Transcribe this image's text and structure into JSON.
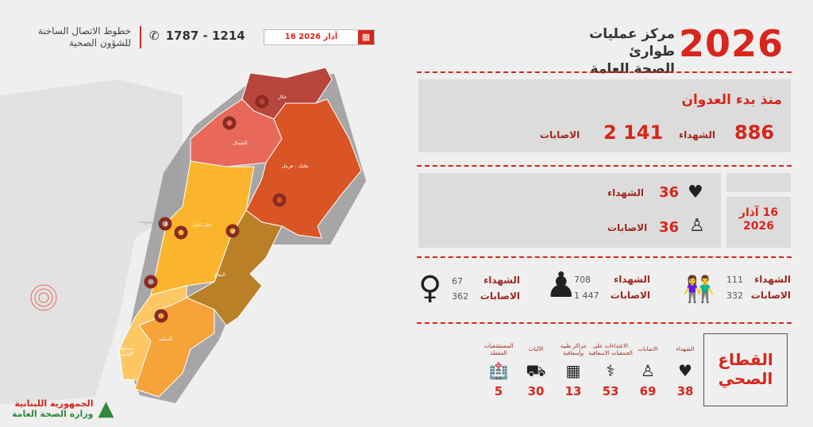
{
  "header": {
    "year": "2026",
    "title_line1": "مركز عمليات طوارئ",
    "title_line2": "الصحة العامة",
    "date": "16 آذار 2026",
    "hotline_numbers": "1787 - 1214",
    "hotline_label_line1": "خطوط الاتصال الساخنة",
    "hotline_label_line2": "للشؤون الصحية"
  },
  "since_aggression": {
    "title": "منذ بدء العدوان",
    "martyrs_label": "الشهداء",
    "martyrs": "886",
    "injured_label": "الاصابات",
    "injured": "2 141"
  },
  "daily": {
    "date_line1": "16 آذار",
    "date_line2": "2026",
    "martyrs_label": "الشهداء",
    "martyrs": "36",
    "injured_label": "الاصابات",
    "injured": "36"
  },
  "demographics": [
    {
      "group": "children",
      "martyrs_label": "الشهداء",
      "martyrs": "111",
      "injured_label": "الاصابات",
      "injured": "332"
    },
    {
      "group": "men",
      "martyrs_label": "الشهداء",
      "martyrs": "708",
      "injured_label": "الاصابات",
      "injured": "1 447"
    },
    {
      "group": "women",
      "martyrs_label": "الشهداء",
      "martyrs": "67",
      "injured_label": "الاصابات",
      "injured": "362"
    }
  ],
  "health_sector": {
    "title_line1": "القطاع",
    "title_line2": "الصحي",
    "items": [
      {
        "label": "الشهداء",
        "value": "38",
        "icon": "heart-icon"
      },
      {
        "label": "الاصابات",
        "value": "69",
        "icon": "injured-person-icon"
      },
      {
        "label": "الاعتداءات على الجمعيات الاسعافية",
        "value": "53",
        "icon": "paramedic-icon"
      },
      {
        "label": "مراكز طبية وإسعافية",
        "value": "13",
        "icon": "medical-center-icon"
      },
      {
        "label": "الآليات",
        "value": "30",
        "icon": "ambulance-icon"
      },
      {
        "label": "المستشفيات المقفلة",
        "value": "5",
        "icon": "hospital-icon"
      }
    ]
  },
  "map": {
    "regions": {
      "akkar": "عكار",
      "north": "الشمال",
      "baalbek": "بعلبك - هرمل",
      "mount": "جبل لبنان",
      "bekaa": "البقاع",
      "south": "محافظة الجنوب",
      "nabatieh": "النبطية",
      "beirut": "بيروت"
    },
    "colors": {
      "akkar": "#b7463d",
      "north": "#e8695a",
      "baalbek": "#d95525",
      "mount": "#fbb52c",
      "bekaa": "#b98028",
      "south": "#fdc764",
      "nabatieh": "#f6a33a"
    }
  },
  "footer": {
    "ministry_line1": "الجمهورية اللبنانية",
    "ministry_line2": "وزارة الصحة العامة"
  },
  "colors": {
    "accent": "#d7261b",
    "dark_red": "#8b2a22"
  }
}
